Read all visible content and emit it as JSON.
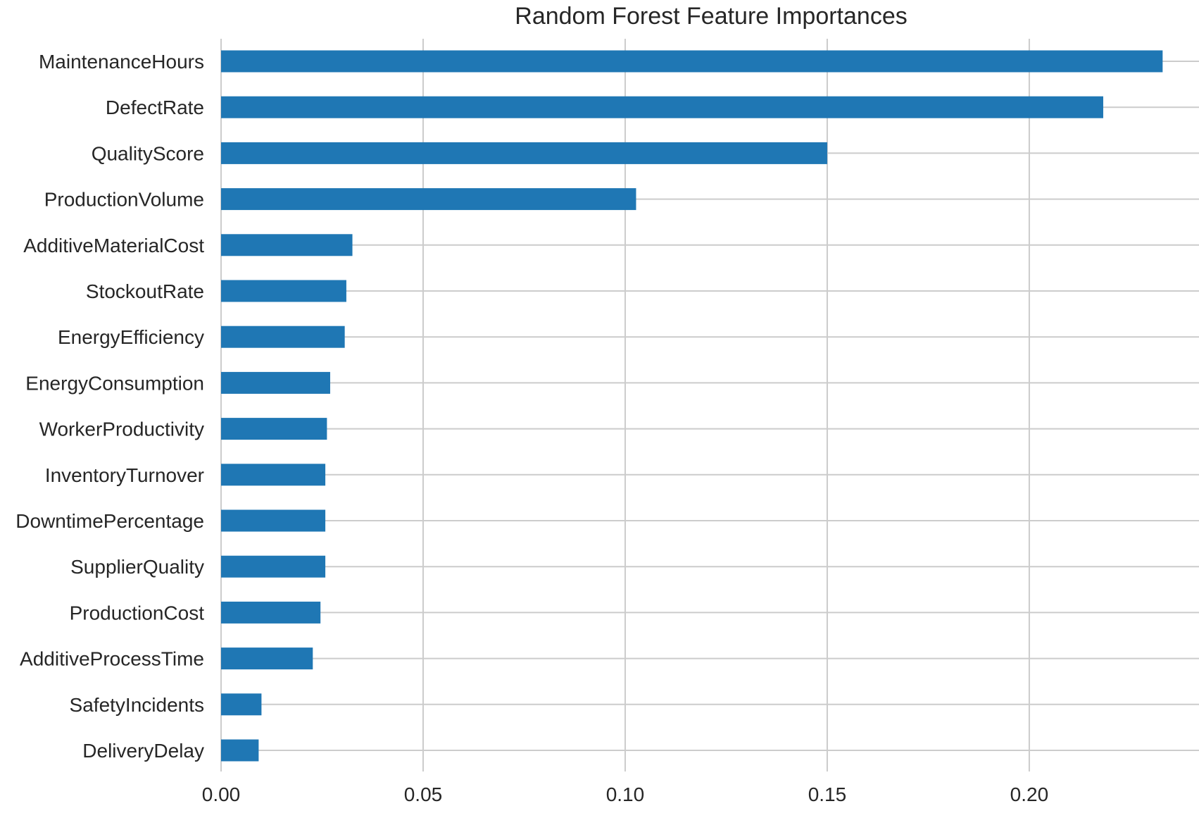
{
  "chart_data": {
    "type": "bar",
    "orientation": "horizontal",
    "title": "Random Forest Feature Importances",
    "xlabel": "",
    "ylabel": "",
    "categories": [
      "MaintenanceHours",
      "DefectRate",
      "QualityScore",
      "ProductionVolume",
      "AdditiveMaterialCost",
      "StockoutRate",
      "EnergyEfficiency",
      "EnergyConsumption",
      "WorkerProductivity",
      "InventoryTurnover",
      "DowntimePercentage",
      "SupplierQuality",
      "ProductionCost",
      "AdditiveProcessTime",
      "SafetyIncidents",
      "DeliveryDelay"
    ],
    "values": [
      0.233,
      0.2183,
      0.15,
      0.1027,
      0.0325,
      0.031,
      0.0306,
      0.027,
      0.0262,
      0.0258,
      0.0258,
      0.0258,
      0.0246,
      0.0227,
      0.01,
      0.0093
    ],
    "x_ticks": [
      0.0,
      0.05,
      0.1,
      0.15,
      0.2
    ],
    "x_tick_labels": [
      "0.00",
      "0.05",
      "0.10",
      "0.15",
      "0.20"
    ],
    "xlim": [
      0,
      0.242
    ],
    "grid": true,
    "bar_color": "#1f77b4",
    "grid_color": "#cccccc",
    "text_color": "#262626"
  }
}
